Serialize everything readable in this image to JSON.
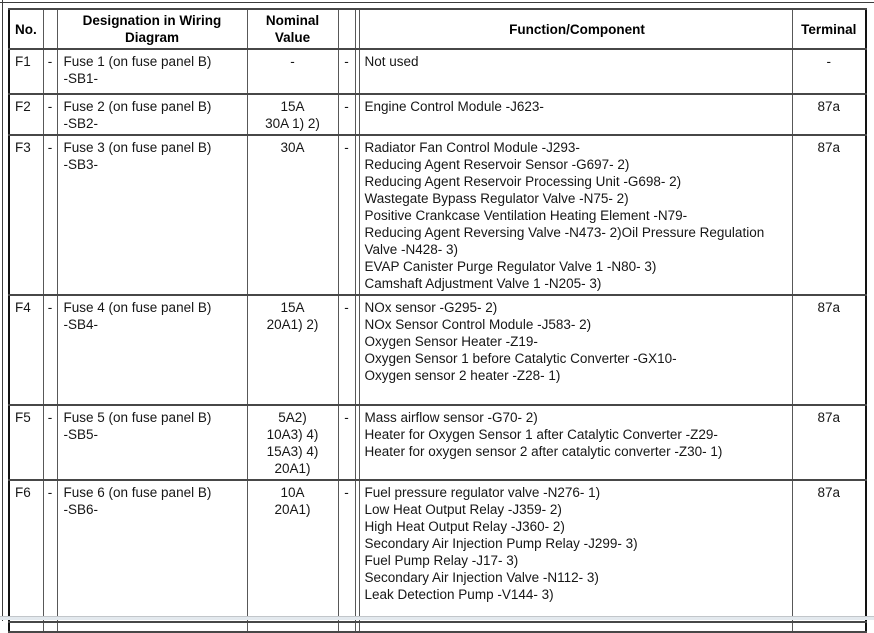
{
  "table": {
    "headers": {
      "no": "No.",
      "designation": "Designation in Wiring Diagram",
      "nominal": "Nominal Value",
      "function": "Function/Component",
      "terminal": "Terminal"
    },
    "rows": [
      {
        "no": "F1",
        "dash1": "-",
        "designation": [
          "Fuse 1 (on fuse panel B)",
          "-SB1-"
        ],
        "nominal": [
          "-"
        ],
        "dash2": "-",
        "function": [
          "Not used"
        ],
        "terminal": "-"
      },
      {
        "no": "F2",
        "dash1": "-",
        "designation": [
          "Fuse 2 (on fuse panel B)",
          "-SB2-"
        ],
        "nominal": [
          "15A",
          "30A 1) 2)"
        ],
        "dash2": "-",
        "function": [
          "Engine Control Module -J623-"
        ],
        "terminal": "87a"
      },
      {
        "no": "F3",
        "dash1": "-",
        "designation": [
          "Fuse 3 (on fuse panel B)",
          "-SB3-"
        ],
        "nominal": [
          "30A"
        ],
        "dash2": "-",
        "function": [
          "Radiator Fan Control Module -J293-",
          "Reducing Agent Reservoir Sensor -G697- 2)",
          "Reducing Agent Reservoir Processing Unit -G698- 2)",
          "Wastegate Bypass Regulator Valve -N75- 2)",
          "Positive Crankcase Ventilation Heating Element -N79-",
          "Reducing Agent Reversing Valve -N473- 2)Oil Pressure Regulation Valve -N428- 3)",
          "EVAP Canister Purge Regulator Valve 1 -N80- 3)",
          "Camshaft Adjustment Valve 1 -N205- 3)"
        ],
        "terminal": "87a"
      },
      {
        "no": "F4",
        "dash1": "-",
        "designation": [
          "Fuse 4 (on fuse panel B)",
          "-SB4-"
        ],
        "nominal": [
          "15A",
          "20A1) 2)"
        ],
        "dash2": "-",
        "function": [
          "NOx sensor -G295- 2)",
          "NOx Sensor Control Module -J583- 2)",
          "Oxygen Sensor Heater -Z19-",
          "Oxygen Sensor 1 before Catalytic Converter -GX10-",
          "Oxygen sensor 2 heater -Z28- 1)"
        ],
        "terminal": "87a"
      },
      {
        "no": "F5",
        "dash1": "-",
        "designation": [
          "Fuse 5 (on fuse panel B)",
          "-SB5-"
        ],
        "nominal": [
          "5A2)",
          "10A3) 4)",
          "15A3) 4)",
          "20A1)"
        ],
        "dash2": "-",
        "function": [
          "Mass airflow sensor -G70- 2)",
          "Heater for Oxygen Sensor 1 after Catalytic Converter -Z29-",
          "Heater for oxygen sensor 2 after catalytic converter -Z30- 1)"
        ],
        "terminal": "87a"
      },
      {
        "no": "F6",
        "dash1": "-",
        "designation": [
          "Fuse 6 (on fuse panel B)",
          "-SB6-"
        ],
        "nominal": [
          "10A",
          "20A1)"
        ],
        "dash2": "-",
        "function": [
          "Fuel pressure regulator valve -N276- 1)",
          "Low Heat Output Relay -J359- 2)",
          "High Heat Output Relay -J360- 2)",
          "Secondary Air Injection Pump Relay -J299- 3)",
          "Fuel Pump Relay -J17- 3)",
          "Secondary Air Injection Valve -N112- 3)",
          "Leak Detection Pump -V144- 3)"
        ],
        "terminal": "87a"
      }
    ]
  }
}
